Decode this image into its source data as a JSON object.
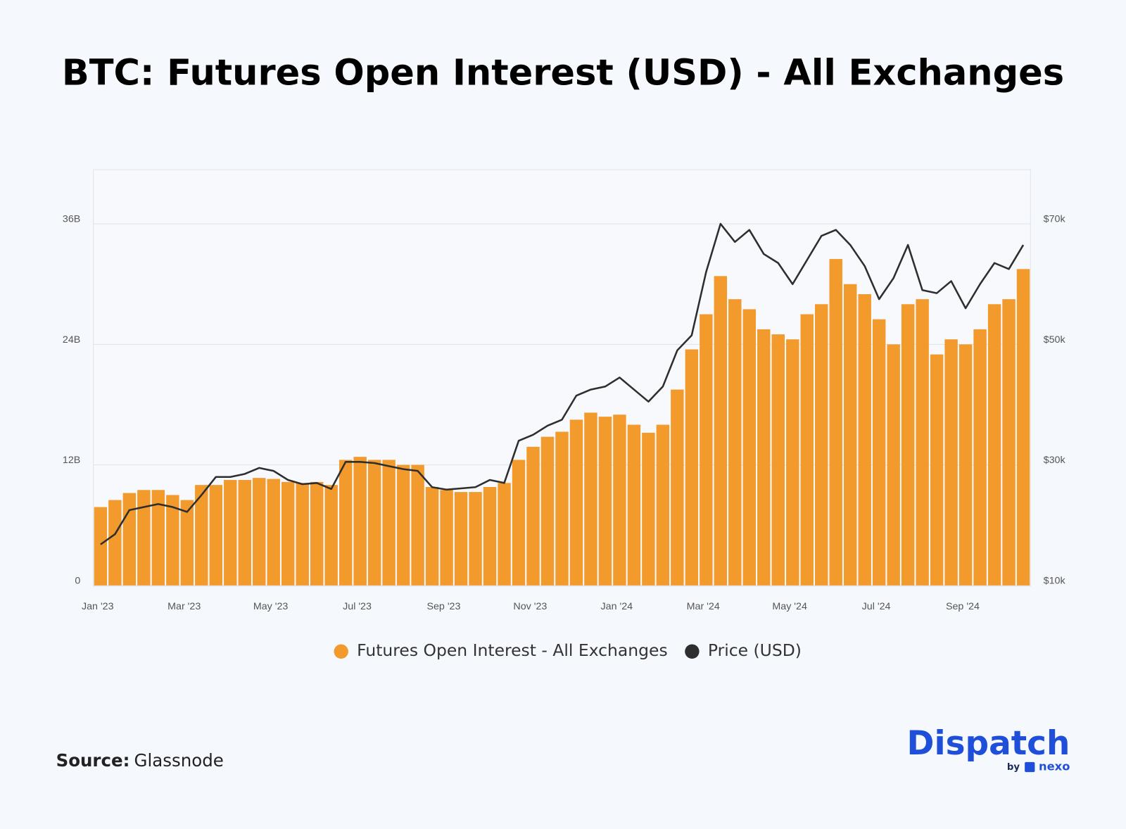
{
  "chart_data": {
    "type": "combo",
    "title": "BTC: Futures Open Interest (USD) - All Exchanges",
    "categories": [
      "Jan '23",
      null,
      null,
      null,
      null,
      null,
      "Mar '23",
      null,
      null,
      null,
      null,
      null,
      "May '23",
      null,
      null,
      null,
      null,
      null,
      "Jul '23",
      null,
      null,
      null,
      null,
      null,
      "Sep '23",
      null,
      null,
      null,
      null,
      null,
      "Nov '23",
      null,
      null,
      null,
      null,
      null,
      "Jan '24",
      null,
      null,
      null,
      null,
      null,
      "Mar '24",
      null,
      null,
      null,
      null,
      null,
      "May '24",
      null,
      null,
      null,
      null,
      null,
      "Jul '24",
      null,
      null,
      null,
      null,
      null,
      "Sep '24",
      null,
      null,
      null,
      null
    ],
    "series": [
      {
        "name": "Futures Open Interest - All Exchanges",
        "type": "bar",
        "axis": "y",
        "color": "#f39a2c",
        "values": [
          7.8,
          8.5,
          9.2,
          9.5,
          9.5,
          9.0,
          8.5,
          10.0,
          10.0,
          10.5,
          10.5,
          10.7,
          10.6,
          10.3,
          10.2,
          10.3,
          10.0,
          12.5,
          12.8,
          12.5,
          12.5,
          12.0,
          12.0,
          9.8,
          9.5,
          9.3,
          9.3,
          9.8,
          10.2,
          12.5,
          13.8,
          14.8,
          15.3,
          16.5,
          17.2,
          16.8,
          17.0,
          16.0,
          15.2,
          16.0,
          19.5,
          23.5,
          27.0,
          30.8,
          28.5,
          27.5,
          25.5,
          25.0,
          24.5,
          27.0,
          28.0,
          32.5,
          30.0,
          29.0,
          26.5,
          24.0,
          28.0,
          28.5,
          23.0,
          24.5,
          24.0,
          25.5,
          28.0,
          28.5,
          31.5
        ]
      },
      {
        "name": "Price (USD)",
        "type": "line",
        "axis": "y2",
        "color": "#2e2e2e",
        "values": [
          16800,
          18500,
          22500,
          23000,
          23500,
          23000,
          22200,
          25000,
          28000,
          28000,
          28500,
          29500,
          29000,
          27500,
          26800,
          27000,
          26000,
          30500,
          30500,
          30300,
          29800,
          29300,
          29000,
          26300,
          25900,
          26100,
          26300,
          27500,
          27000,
          34000,
          35000,
          36500,
          37500,
          41500,
          42500,
          43000,
          44500,
          42500,
          40500,
          43000,
          49000,
          51500,
          62000,
          70000,
          67000,
          69000,
          65000,
          63500,
          60000,
          64000,
          68000,
          69000,
          66500,
          63000,
          57500,
          61000,
          66500,
          59000,
          58500,
          60500,
          56000,
          60000,
          63500,
          62500,
          66500
        ]
      }
    ],
    "ylim": [
      0,
      41.4
    ],
    "yticks": [
      0,
      {
        "value": 12,
        "label": "12B"
      },
      {
        "value": 24,
        "label": "24B"
      },
      {
        "value": 36,
        "label": "36B"
      }
    ],
    "y2lim": [
      10000,
      79000
    ],
    "y2ticks": [
      {
        "value": 10000,
        "label": "$10k"
      },
      {
        "value": 30000,
        "label": "$30k"
      },
      {
        "value": 50000,
        "label": "$50k"
      },
      {
        "value": 70000,
        "label": "$70k"
      }
    ],
    "grid": true,
    "legend": "bottom"
  },
  "source": {
    "label": "Source:",
    "name": "Glassnode"
  },
  "branding": {
    "brand": "Dispatch",
    "by": "by",
    "partner": "nexo"
  }
}
